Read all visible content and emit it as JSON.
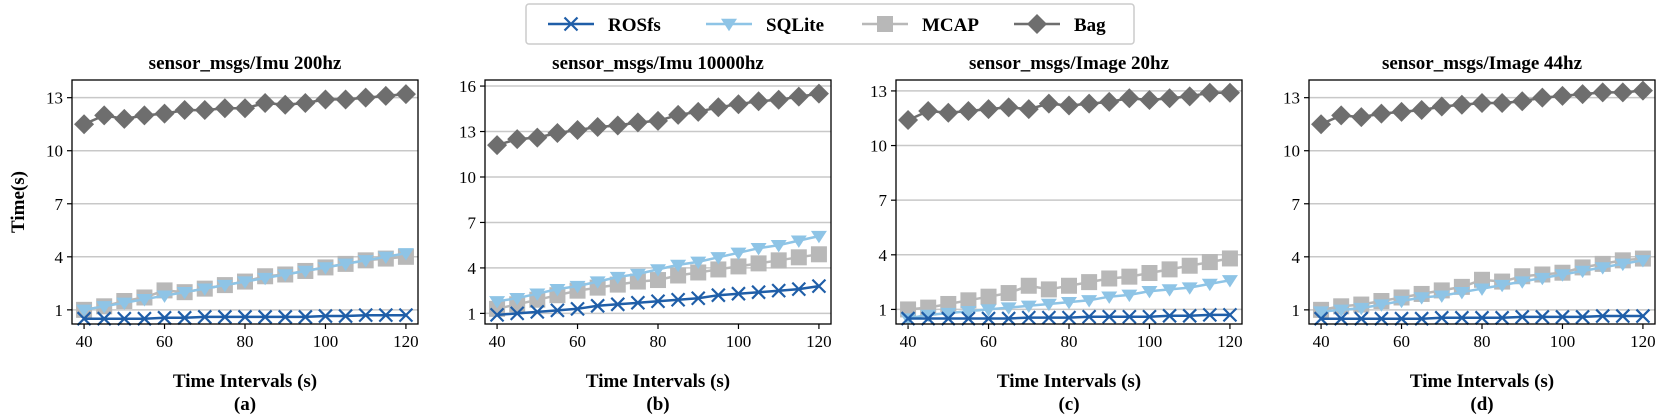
{
  "legend": {
    "entries": [
      {
        "name": "ROSfs",
        "color": "#1f5ea8",
        "marker": "x"
      },
      {
        "name": "SQLite",
        "color": "#8ec4e6",
        "marker": "triangle-down"
      },
      {
        "name": "MCAP",
        "color": "#b8b8b8",
        "marker": "square"
      },
      {
        "name": "Bag",
        "color": "#6e6e6e",
        "marker": "diamond"
      }
    ]
  },
  "shared": {
    "ylabel": "Time(s)",
    "xlabel": "Time Intervals (s)",
    "x": [
      40,
      45,
      50,
      55,
      60,
      65,
      70,
      75,
      80,
      85,
      90,
      95,
      100,
      105,
      110,
      115,
      120
    ],
    "xticks": [
      40,
      60,
      80,
      100,
      120
    ],
    "xlim": [
      37,
      123
    ]
  },
  "chart_data": [
    {
      "type": "line",
      "title": "sensor_msgs/Imu 200hz",
      "caption": "(a)",
      "ylim": [
        0.2,
        14
      ],
      "yticks": [
        1,
        4,
        7,
        10,
        13
      ],
      "series": [
        {
          "name": "ROSfs",
          "values": [
            0.5,
            0.5,
            0.5,
            0.5,
            0.55,
            0.55,
            0.6,
            0.6,
            0.6,
            0.6,
            0.6,
            0.6,
            0.65,
            0.65,
            0.7,
            0.7,
            0.7
          ]
        },
        {
          "name": "SQLite",
          "values": [
            1.0,
            1.2,
            1.4,
            1.6,
            1.8,
            2.0,
            2.2,
            2.4,
            2.6,
            2.8,
            3.0,
            3.2,
            3.4,
            3.6,
            3.8,
            4.0,
            4.2
          ]
        },
        {
          "name": "MCAP",
          "values": [
            1.0,
            1.2,
            1.5,
            1.7,
            2.1,
            2.0,
            2.2,
            2.4,
            2.6,
            2.9,
            3.0,
            3.2,
            3.4,
            3.6,
            3.8,
            3.9,
            4.0
          ]
        },
        {
          "name": "Bag",
          "values": [
            11.5,
            12.0,
            11.8,
            12.0,
            12.1,
            12.3,
            12.3,
            12.4,
            12.4,
            12.7,
            12.6,
            12.7,
            12.9,
            12.9,
            13.0,
            13.1,
            13.2
          ]
        }
      ]
    },
    {
      "type": "line",
      "title": "sensor_msgs/Imu 10000hz",
      "caption": "(b)",
      "ylim": [
        0.3,
        16.4
      ],
      "yticks": [
        1,
        4,
        7,
        10,
        13,
        16
      ],
      "series": [
        {
          "name": "ROSfs",
          "values": [
            0.9,
            1.0,
            1.1,
            1.2,
            1.3,
            1.5,
            1.6,
            1.7,
            1.8,
            1.9,
            2.0,
            2.2,
            2.3,
            2.4,
            2.5,
            2.6,
            2.8
          ]
        },
        {
          "name": "SQLite",
          "values": [
            1.8,
            2.0,
            2.3,
            2.6,
            2.8,
            3.1,
            3.4,
            3.6,
            3.9,
            4.2,
            4.4,
            4.7,
            5.0,
            5.3,
            5.5,
            5.8,
            6.1
          ]
        },
        {
          "name": "MCAP",
          "values": [
            1.3,
            1.6,
            1.9,
            2.2,
            2.5,
            2.7,
            2.9,
            3.1,
            3.2,
            3.5,
            3.7,
            3.9,
            4.1,
            4.3,
            4.5,
            4.7,
            4.9
          ]
        },
        {
          "name": "Bag",
          "values": [
            12.1,
            12.5,
            12.6,
            12.9,
            13.1,
            13.3,
            13.4,
            13.6,
            13.7,
            14.1,
            14.3,
            14.6,
            14.8,
            15.0,
            15.1,
            15.3,
            15.5
          ]
        }
      ]
    },
    {
      "type": "line",
      "title": "sensor_msgs/Image 20hz",
      "caption": "(c)",
      "ylim": [
        0.2,
        13.6
      ],
      "yticks": [
        1,
        4,
        7,
        10,
        13
      ],
      "series": [
        {
          "name": "ROSfs",
          "values": [
            0.5,
            0.5,
            0.5,
            0.5,
            0.5,
            0.5,
            0.55,
            0.55,
            0.55,
            0.6,
            0.6,
            0.6,
            0.6,
            0.65,
            0.65,
            0.7,
            0.7
          ]
        },
        {
          "name": "SQLite",
          "values": [
            0.5,
            0.7,
            0.8,
            0.9,
            1.0,
            1.1,
            1.2,
            1.3,
            1.4,
            1.5,
            1.7,
            1.8,
            2.0,
            2.1,
            2.2,
            2.4,
            2.6
          ]
        },
        {
          "name": "MCAP",
          "values": [
            1.0,
            1.1,
            1.3,
            1.5,
            1.7,
            1.9,
            2.3,
            2.1,
            2.3,
            2.5,
            2.7,
            2.8,
            3.0,
            3.2,
            3.4,
            3.6,
            3.8
          ]
        },
        {
          "name": "Bag",
          "values": [
            11.4,
            11.9,
            11.8,
            11.9,
            12.0,
            12.1,
            12.0,
            12.3,
            12.2,
            12.3,
            12.4,
            12.6,
            12.5,
            12.6,
            12.7,
            12.9,
            12.9
          ]
        }
      ]
    },
    {
      "type": "line",
      "title": "sensor_msgs/Image 44hz",
      "caption": "(d)",
      "ylim": [
        0.2,
        14
      ],
      "yticks": [
        1,
        4,
        7,
        10,
        13
      ],
      "series": [
        {
          "name": "ROSfs",
          "values": [
            0.5,
            0.5,
            0.5,
            0.5,
            0.5,
            0.5,
            0.55,
            0.55,
            0.55,
            0.55,
            0.6,
            0.6,
            0.6,
            0.6,
            0.65,
            0.65,
            0.65
          ]
        },
        {
          "name": "SQLite",
          "values": [
            0.9,
            1.0,
            1.1,
            1.3,
            1.5,
            1.7,
            1.8,
            2.0,
            2.2,
            2.4,
            2.6,
            2.8,
            3.0,
            3.2,
            3.4,
            3.6,
            3.8
          ]
        },
        {
          "name": "MCAP",
          "values": [
            1.0,
            1.2,
            1.3,
            1.5,
            1.7,
            1.9,
            2.1,
            2.3,
            2.7,
            2.6,
            2.9,
            3.0,
            3.1,
            3.4,
            3.6,
            3.8,
            3.9
          ]
        },
        {
          "name": "Bag",
          "values": [
            11.5,
            12.0,
            11.9,
            12.1,
            12.2,
            12.3,
            12.5,
            12.6,
            12.7,
            12.7,
            12.8,
            13.0,
            13.1,
            13.2,
            13.3,
            13.3,
            13.4
          ]
        }
      ]
    }
  ]
}
